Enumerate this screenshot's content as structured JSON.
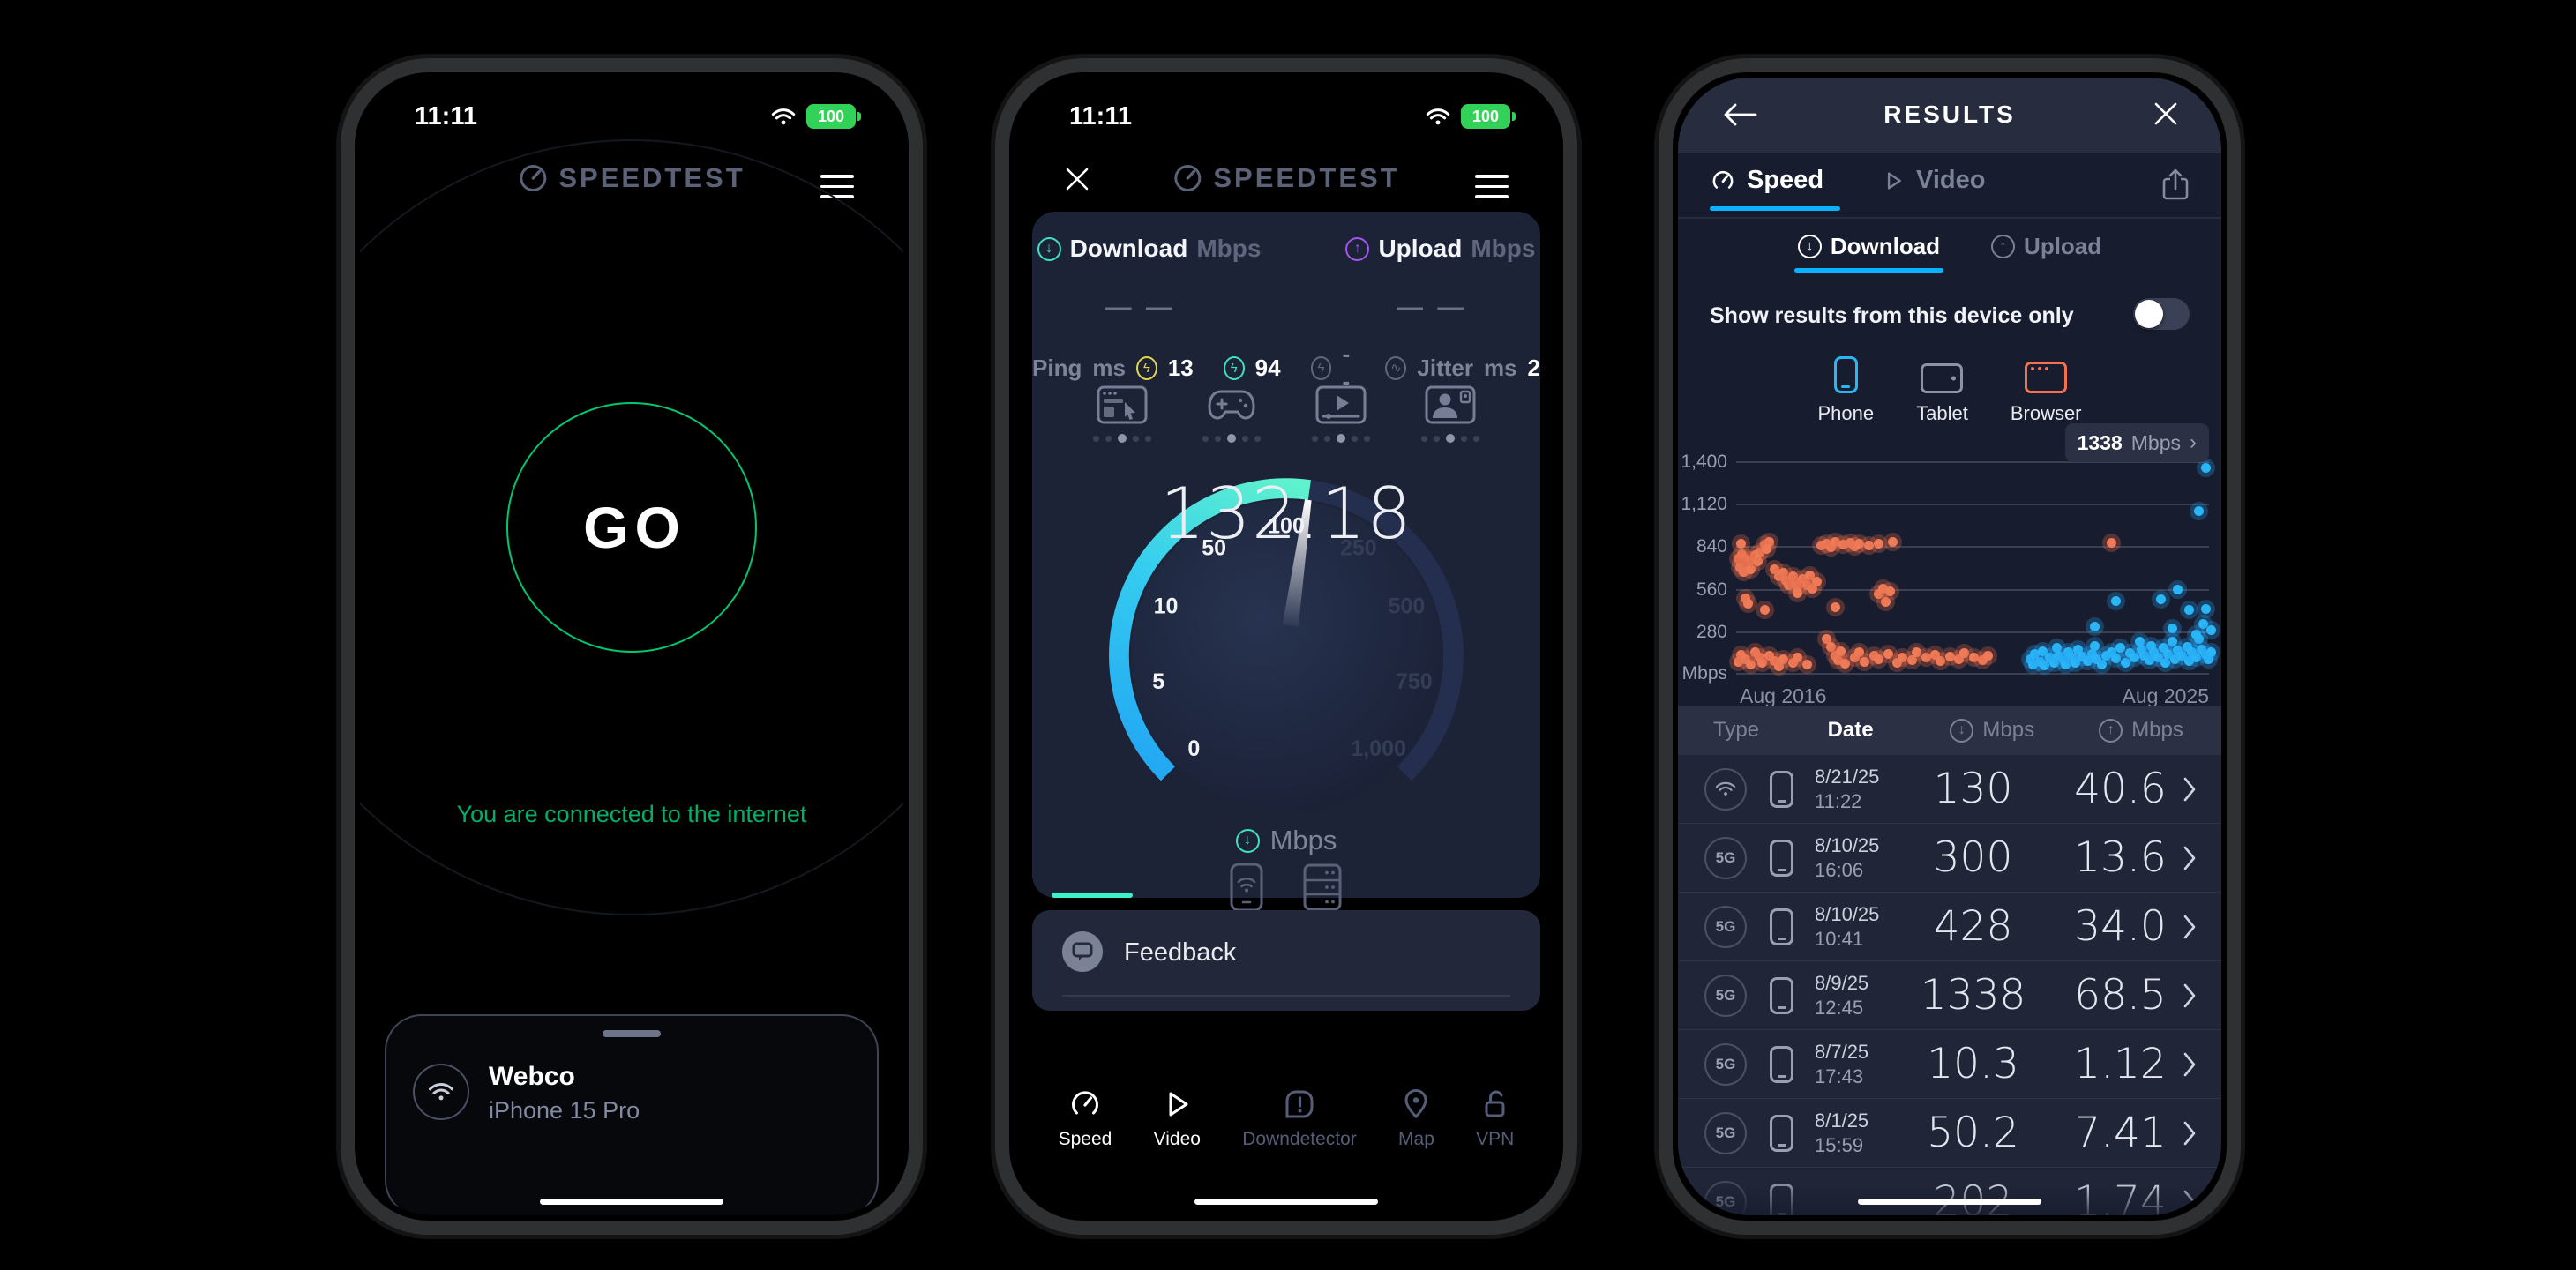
{
  "status_bar": {
    "time": "11:11",
    "battery": "100"
  },
  "brand": {
    "name": "SPEEDTEST"
  },
  "phone1": {
    "go_label": "GO",
    "connection_status": "You are connected to the internet",
    "network_card": {
      "ssid": "Webco",
      "device": "iPhone 15 Pro"
    }
  },
  "phone2": {
    "metrics": {
      "download_label": "Download",
      "upload_label": "Upload",
      "unit": "Mbps",
      "download_value": "— —",
      "upload_value": "— —",
      "ping_label": "Ping",
      "ping_unit": "ms",
      "ping_idle": "13",
      "ping_download": "94",
      "ping_upload": "--",
      "jitter_label": "Jitter",
      "jitter_unit": "ms",
      "jitter_value": "2"
    },
    "gauge": {
      "value": "132.18",
      "unit": "Mbps",
      "ticks": [
        "0",
        "5",
        "10",
        "50",
        "100",
        "250",
        "500",
        "750",
        "1,000"
      ]
    },
    "feedback_label": "Feedback",
    "nav": [
      {
        "label": "Speed",
        "active": true
      },
      {
        "label": "Video",
        "active": true
      },
      {
        "label": "Downdetector",
        "active": false
      },
      {
        "label": "Map",
        "active": false
      },
      {
        "label": "VPN",
        "active": false
      }
    ]
  },
  "phone3": {
    "header_title": "RESULTS",
    "tabs": {
      "speed": "Speed",
      "video": "Video"
    },
    "subtabs": {
      "download": "Download",
      "upload": "Upload"
    },
    "filter_label": "Show results from this device only",
    "device_types": [
      "Phone",
      "Tablet",
      "Browser"
    ],
    "table": {
      "headers": {
        "type": "Type",
        "date": "Date",
        "down_unit": "Mbps",
        "up_unit": "Mbps"
      },
      "rows": [
        {
          "type": "wifi",
          "date": "8/21/25",
          "time": "11:22",
          "down": "130",
          "up": "40.6"
        },
        {
          "type": "5G",
          "date": "8/10/25",
          "time": "16:06",
          "down": "300",
          "up": "13.6"
        },
        {
          "type": "5G",
          "date": "8/10/25",
          "time": "10:41",
          "down": "428",
          "up": "34.0"
        },
        {
          "type": "5G",
          "date": "8/9/25",
          "time": "12:45",
          "down": "1338",
          "up": "68.5"
        },
        {
          "type": "5G",
          "date": "8/7/25",
          "time": "17:43",
          "down": "10.3",
          "up": "1.12"
        },
        {
          "type": "5G",
          "date": "8/1/25",
          "time": "15:59",
          "down": "50.2",
          "up": "7.41"
        },
        {
          "type": "5G",
          "date": "",
          "time": "",
          "down": "202",
          "up": "1.74",
          "partial": true
        }
      ]
    }
  },
  "chart_data": {
    "type": "scatter",
    "ylabel": "Mbps",
    "ylim": [
      0,
      1500
    ],
    "gridline_values": [
      0,
      280,
      560,
      840,
      1120,
      1400
    ],
    "y_tick_labels": [
      "1,400",
      "1,120",
      "840",
      "560",
      "280",
      "Mbps"
    ],
    "x_range": [
      "Aug 2016",
      "Aug 2025"
    ],
    "legend": "hidden",
    "selected_point": {
      "value": "1338",
      "unit": "Mbps"
    },
    "series": [
      {
        "name": "download-results-early",
        "color": "#ef7a57",
        "points": [
          [
            0.005,
            760
          ],
          [
            0.01,
            730
          ],
          [
            0.012,
            790
          ],
          [
            0.018,
            700
          ],
          [
            0.02,
            760
          ],
          [
            0.025,
            720
          ],
          [
            0.03,
            745
          ],
          [
            0.008,
            700
          ],
          [
            0.015,
            670
          ],
          [
            0.03,
            690
          ],
          [
            0.04,
            780
          ],
          [
            0.045,
            740
          ],
          [
            0.05,
            800
          ],
          [
            0.01,
            860
          ],
          [
            0.06,
            850
          ],
          [
            0.07,
            870
          ],
          [
            0.065,
            820
          ],
          [
            0.08,
            690
          ],
          [
            0.09,
            640
          ],
          [
            0.1,
            665
          ],
          [
            0.105,
            615
          ],
          [
            0.11,
            585
          ],
          [
            0.12,
            640
          ],
          [
            0.125,
            600
          ],
          [
            0.13,
            570
          ],
          [
            0.14,
            625
          ],
          [
            0.15,
            585
          ],
          [
            0.155,
            650
          ],
          [
            0.16,
            560
          ],
          [
            0.17,
            605
          ],
          [
            0.18,
            845
          ],
          [
            0.19,
            860
          ],
          [
            0.2,
            835
          ],
          [
            0.21,
            870
          ],
          [
            0.225,
            850
          ],
          [
            0.24,
            865
          ],
          [
            0.25,
            840
          ],
          [
            0.26,
            855
          ],
          [
            0.28,
            845
          ],
          [
            0.3,
            860
          ],
          [
            0.33,
            870
          ],
          [
            0.02,
            500
          ],
          [
            0.025,
            465
          ],
          [
            0.06,
            420
          ],
          [
            0.13,
            530
          ],
          [
            0.21,
            440
          ],
          [
            0.3,
            525
          ],
          [
            0.31,
            560
          ],
          [
            0.315,
            475
          ],
          [
            0.325,
            545
          ],
          [
            0.005,
            80
          ],
          [
            0.01,
            125
          ],
          [
            0.02,
            95
          ],
          [
            0.03,
            60
          ],
          [
            0.04,
            140
          ],
          [
            0.05,
            105
          ],
          [
            0.055,
            75
          ],
          [
            0.07,
            120
          ],
          [
            0.08,
            85
          ],
          [
            0.09,
            50
          ],
          [
            0.1,
            95
          ],
          [
            0.12,
            70
          ],
          [
            0.13,
            110
          ],
          [
            0.15,
            60
          ],
          [
            0.19,
            230
          ],
          [
            0.2,
            180
          ],
          [
            0.21,
            120
          ],
          [
            0.215,
            90
          ],
          [
            0.22,
            150
          ],
          [
            0.23,
            65
          ],
          [
            0.25,
            105
          ],
          [
            0.26,
            140
          ],
          [
            0.27,
            80
          ],
          [
            0.29,
            120
          ],
          [
            0.3,
            95
          ],
          [
            0.32,
            130
          ],
          [
            0.34,
            70
          ],
          [
            0.35,
            110
          ],
          [
            0.37,
            90
          ],
          [
            0.38,
            140
          ],
          [
            0.4,
            105
          ],
          [
            0.42,
            125
          ],
          [
            0.43,
            85
          ],
          [
            0.45,
            115
          ],
          [
            0.47,
            95
          ],
          [
            0.48,
            135
          ],
          [
            0.5,
            110
          ],
          [
            0.52,
            90
          ],
          [
            0.53,
            120
          ],
          [
            0.79,
            865
          ]
        ]
      },
      {
        "name": "download-results-recent",
        "color": "#29b6f6",
        "points": [
          [
            0.62,
            95
          ],
          [
            0.625,
            60
          ],
          [
            0.63,
            130
          ],
          [
            0.64,
            80
          ],
          [
            0.645,
            150
          ],
          [
            0.65,
            55
          ],
          [
            0.66,
            110
          ],
          [
            0.67,
            75
          ],
          [
            0.675,
            170
          ],
          [
            0.68,
            120
          ],
          [
            0.69,
            90
          ],
          [
            0.695,
            60
          ],
          [
            0.7,
            140
          ],
          [
            0.71,
            105
          ],
          [
            0.715,
            75
          ],
          [
            0.72,
            160
          ],
          [
            0.73,
            115
          ],
          [
            0.74,
            85
          ],
          [
            0.75,
            130
          ],
          [
            0.755,
            185
          ],
          [
            0.76,
            95
          ],
          [
            0.77,
            60
          ],
          [
            0.78,
            120
          ],
          [
            0.79,
            145
          ],
          [
            0.8,
            100
          ],
          [
            0.81,
            170
          ],
          [
            0.82,
            75
          ],
          [
            0.83,
            135
          ],
          [
            0.84,
            105
          ],
          [
            0.85,
            210
          ],
          [
            0.855,
            160
          ],
          [
            0.86,
            120
          ],
          [
            0.87,
            90
          ],
          [
            0.875,
            185
          ],
          [
            0.88,
            140
          ],
          [
            0.89,
            105
          ],
          [
            0.9,
            170
          ],
          [
            0.905,
            75
          ],
          [
            0.91,
            130
          ],
          [
            0.92,
            215
          ],
          [
            0.925,
            95
          ],
          [
            0.93,
            155
          ],
          [
            0.94,
            120
          ],
          [
            0.95,
            180
          ],
          [
            0.955,
            85
          ],
          [
            0.96,
            140
          ],
          [
            0.97,
            110
          ],
          [
            0.975,
            230
          ],
          [
            0.98,
            160
          ],
          [
            0.99,
            125
          ],
          [
            0.995,
            95
          ],
          [
            1.0,
            145
          ],
          [
            0.755,
            310
          ],
          [
            0.8,
            480
          ],
          [
            0.895,
            490
          ],
          [
            0.92,
            300
          ],
          [
            0.93,
            555
          ],
          [
            0.955,
            420
          ],
          [
            0.97,
            260
          ],
          [
            0.985,
            330
          ],
          [
            0.99,
            430
          ],
          [
            1.0,
            285
          ],
          [
            0.975,
            1075
          ],
          [
            0.99,
            1360
          ]
        ]
      }
    ]
  }
}
